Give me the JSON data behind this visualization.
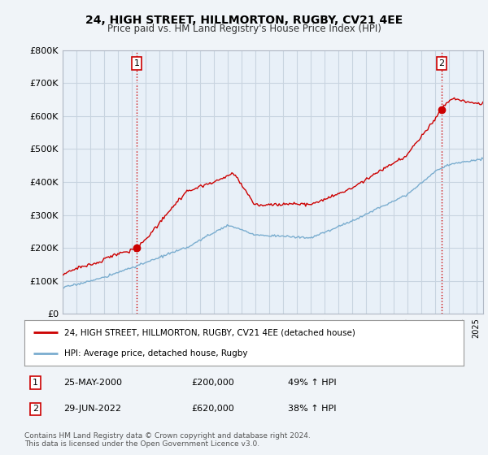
{
  "title": "24, HIGH STREET, HILLMORTON, RUGBY, CV21 4EE",
  "subtitle": "Price paid vs. HM Land Registry's House Price Index (HPI)",
  "legend_label_red": "24, HIGH STREET, HILLMORTON, RUGBY, CV21 4EE (detached house)",
  "legend_label_blue": "HPI: Average price, detached house, Rugby",
  "annotation1_date": "25-MAY-2000",
  "annotation1_price": "£200,000",
  "annotation1_hpi": "49% ↑ HPI",
  "annotation2_date": "29-JUN-2022",
  "annotation2_price": "£620,000",
  "annotation2_hpi": "38% ↑ HPI",
  "footer": "Contains HM Land Registry data © Crown copyright and database right 2024.\nThis data is licensed under the Open Government Licence v3.0.",
  "red_color": "#cc0000",
  "blue_color": "#7aadcf",
  "background_color": "#f0f4f8",
  "plot_bg_color": "#e8f0f8",
  "grid_color": "#c8d4e0",
  "ylim": [
    0,
    800000
  ],
  "yticks": [
    0,
    100000,
    200000,
    300000,
    400000,
    500000,
    600000,
    700000,
    800000
  ],
  "sale1_x": 2000.38,
  "sale1_y": 200000,
  "sale2_x": 2022.49,
  "sale2_y": 620000,
  "xmin": 1995,
  "xmax": 2025.5
}
